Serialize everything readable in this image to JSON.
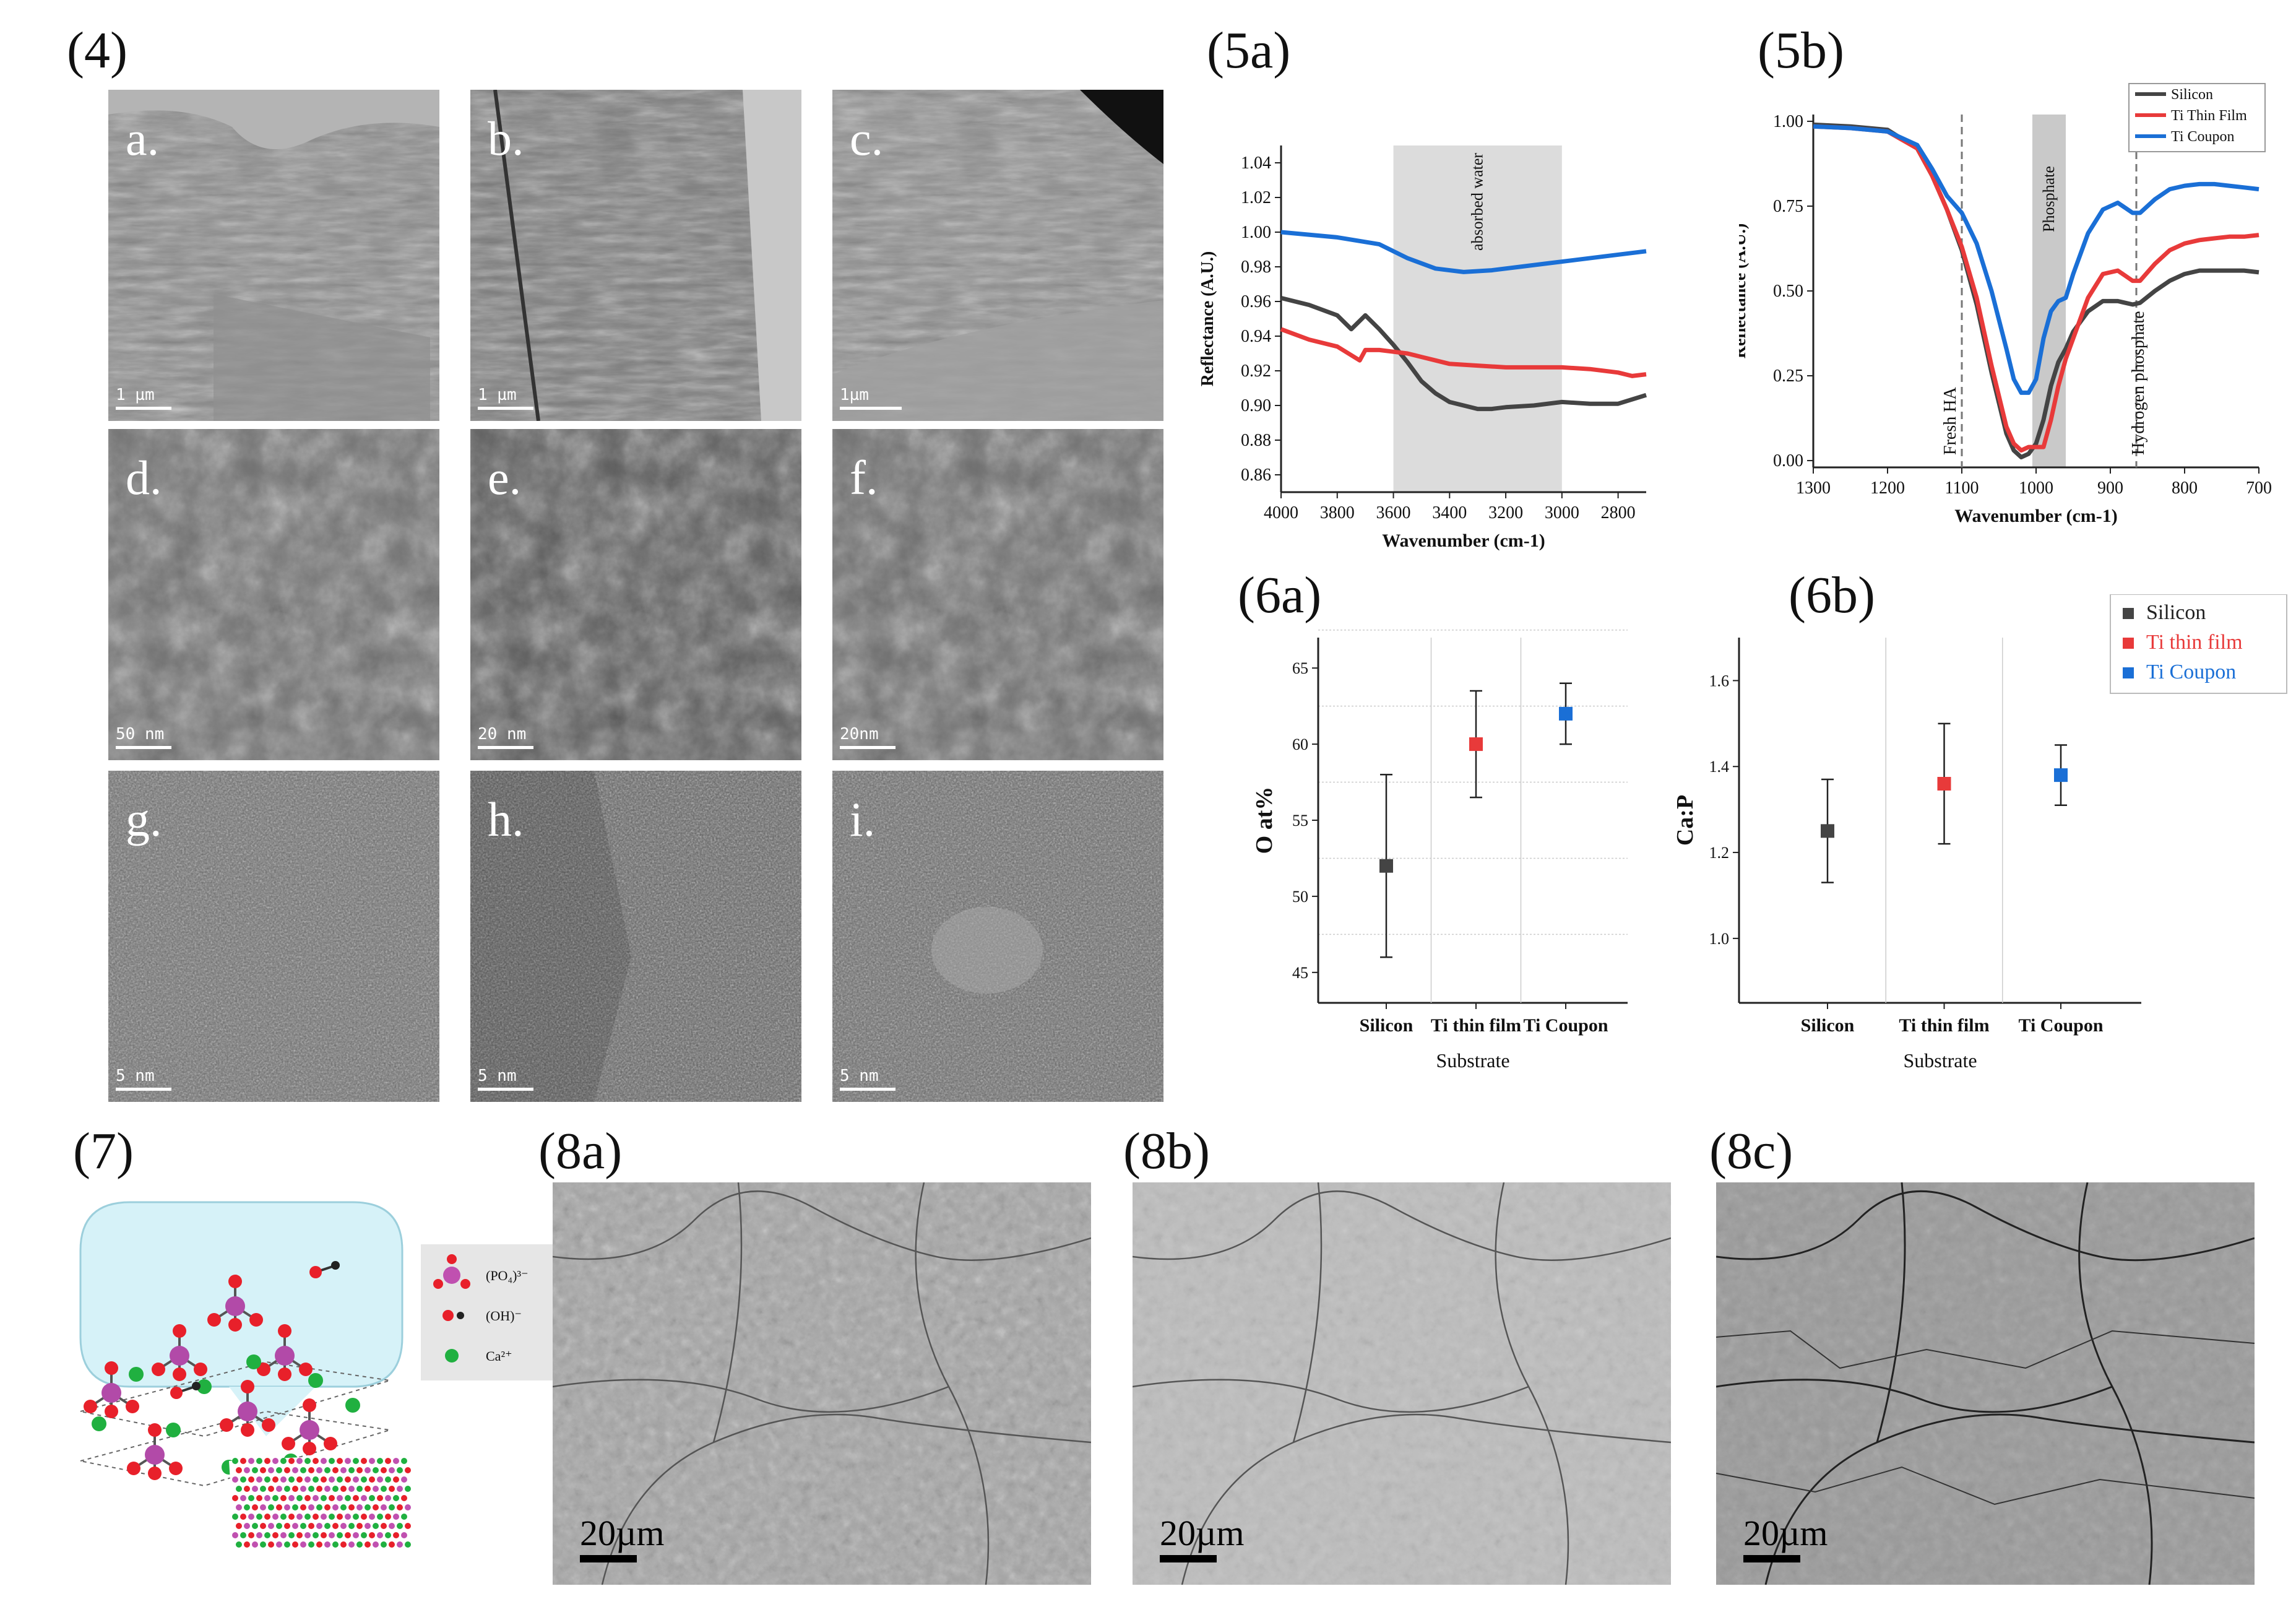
{
  "panels": {
    "p4": "(4)",
    "p5a": "(5a)",
    "p5b": "(5b)",
    "p6a": "(6a)",
    "p6b": "(6b)",
    "p7": "(7)",
    "p8a": "(8a)",
    "p8b": "(8b)",
    "p8c": "(8c)"
  },
  "tem": [
    {
      "label": "a.",
      "scale": "1 µm"
    },
    {
      "label": "b.",
      "scale": "1 µm"
    },
    {
      "label": "c.",
      "scale": "1µm"
    },
    {
      "label": "d.",
      "scale": "50 nm"
    },
    {
      "label": "e.",
      "scale": "20 nm"
    },
    {
      "label": "f.",
      "scale": "20nm"
    },
    {
      "label": "g.",
      "scale": "5 nm"
    },
    {
      "label": "h.",
      "scale": "5 nm"
    },
    {
      "label": "i.",
      "scale": "5 nm"
    }
  ],
  "sem": [
    {
      "scale": "20µm"
    },
    {
      "scale": "20µm"
    },
    {
      "scale": "20µm"
    }
  ],
  "molecule_legend": [
    {
      "label": "(PO₄)³⁻",
      "color": "#c050b0"
    },
    {
      "label": "(OH)⁻",
      "color": "#e8202a"
    },
    {
      "label": "Ca²⁺",
      "color": "#20b040"
    }
  ],
  "chart_data": [
    {
      "id": "5a",
      "type": "line",
      "xlabel": "Wavenumber (cm-1)",
      "ylabel": "Reflectance (A.U.)",
      "xlim": [
        4000,
        2700
      ],
      "ylim": [
        0.85,
        1.05
      ],
      "xticks": [
        4000,
        3800,
        3600,
        3400,
        3200,
        3000,
        2800
      ],
      "yticks": [
        0.86,
        0.88,
        0.9,
        0.92,
        0.94,
        0.96,
        0.98,
        1.0,
        1.02,
        1.04
      ],
      "shaded_region": {
        "x": [
          3600,
          3000
        ],
        "label": "absorbed water"
      },
      "series": [
        {
          "color": "#1a6fd6",
          "x": [
            4000,
            3800,
            3650,
            3550,
            3450,
            3350,
            3250,
            3150,
            3050,
            2950,
            2850,
            2700
          ],
          "y": [
            1.0,
            0.997,
            0.993,
            0.985,
            0.979,
            0.977,
            0.978,
            0.98,
            0.982,
            0.984,
            0.986,
            0.989
          ]
        },
        {
          "color": "#444444",
          "x": [
            4000,
            3900,
            3800,
            3750,
            3700,
            3650,
            3600,
            3550,
            3500,
            3450,
            3400,
            3350,
            3300,
            3250,
            3200,
            3100,
            3000,
            2900,
            2800,
            2700
          ],
          "y": [
            0.962,
            0.958,
            0.952,
            0.944,
            0.952,
            0.944,
            0.935,
            0.925,
            0.914,
            0.907,
            0.902,
            0.9,
            0.898,
            0.898,
            0.899,
            0.9,
            0.902,
            0.901,
            0.901,
            0.906
          ]
        },
        {
          "color": "#e83a3a",
          "x": [
            4000,
            3900,
            3800,
            3720,
            3700,
            3650,
            3600,
            3550,
            3500,
            3450,
            3400,
            3300,
            3200,
            3100,
            3000,
            2900,
            2800,
            2750,
            2700
          ],
          "y": [
            0.944,
            0.938,
            0.934,
            0.926,
            0.932,
            0.932,
            0.931,
            0.93,
            0.928,
            0.926,
            0.924,
            0.923,
            0.922,
            0.922,
            0.922,
            0.921,
            0.919,
            0.917,
            0.918
          ]
        }
      ]
    },
    {
      "id": "5b",
      "type": "line",
      "xlabel": "Wavenumber (cm-1)",
      "ylabel": "Reflectance (A.U.)",
      "xlim": [
        1300,
        700
      ],
      "ylim": [
        -0.02,
        1.02
      ],
      "xticks": [
        1300,
        1200,
        1100,
        1000,
        900,
        800,
        700
      ],
      "yticks": [
        0.0,
        0.25,
        0.5,
        0.75,
        1.0
      ],
      "shaded_region": {
        "x": [
          1005,
          960
        ],
        "label": "Phosphate"
      },
      "dashed_lines": [
        {
          "x": 1100,
          "label": "Fresh HA"
        },
        {
          "x": 865,
          "label": "Hydrogen phosphate"
        }
      ],
      "series": [
        {
          "name": "Silicon",
          "color": "#444444",
          "x": [
            1300,
            1250,
            1200,
            1160,
            1140,
            1120,
            1100,
            1080,
            1060,
            1040,
            1030,
            1020,
            1010,
            1000,
            990,
            980,
            970,
            960,
            950,
            930,
            910,
            890,
            870,
            860,
            840,
            820,
            800,
            780,
            760,
            740,
            720,
            700
          ],
          "y": [
            0.99,
            0.985,
            0.975,
            0.92,
            0.84,
            0.74,
            0.62,
            0.46,
            0.26,
            0.08,
            0.03,
            0.01,
            0.02,
            0.05,
            0.12,
            0.22,
            0.29,
            0.33,
            0.38,
            0.44,
            0.47,
            0.47,
            0.46,
            0.465,
            0.5,
            0.53,
            0.55,
            0.56,
            0.56,
            0.56,
            0.56,
            0.555
          ]
        },
        {
          "name": "Ti Thin Film",
          "color": "#e83a3a",
          "x": [
            1300,
            1250,
            1200,
            1160,
            1140,
            1120,
            1100,
            1080,
            1060,
            1040,
            1030,
            1020,
            1010,
            1000,
            990,
            980,
            970,
            960,
            950,
            930,
            910,
            890,
            870,
            860,
            840,
            820,
            800,
            780,
            760,
            740,
            720,
            700
          ],
          "y": [
            0.985,
            0.98,
            0.97,
            0.92,
            0.84,
            0.74,
            0.63,
            0.48,
            0.28,
            0.1,
            0.05,
            0.03,
            0.04,
            0.04,
            0.04,
            0.12,
            0.22,
            0.3,
            0.36,
            0.48,
            0.55,
            0.56,
            0.53,
            0.53,
            0.58,
            0.62,
            0.64,
            0.65,
            0.655,
            0.66,
            0.66,
            0.665
          ]
        },
        {
          "name": "Ti Coupon",
          "color": "#1a6fd6",
          "x": [
            1300,
            1250,
            1200,
            1160,
            1140,
            1120,
            1100,
            1080,
            1060,
            1040,
            1030,
            1020,
            1010,
            1000,
            990,
            980,
            970,
            960,
            950,
            930,
            910,
            890,
            870,
            860,
            840,
            820,
            800,
            780,
            760,
            740,
            720,
            700
          ],
          "y": [
            0.985,
            0.98,
            0.97,
            0.93,
            0.86,
            0.78,
            0.73,
            0.64,
            0.5,
            0.33,
            0.24,
            0.2,
            0.2,
            0.24,
            0.36,
            0.44,
            0.47,
            0.48,
            0.55,
            0.67,
            0.74,
            0.76,
            0.73,
            0.73,
            0.77,
            0.8,
            0.81,
            0.815,
            0.815,
            0.81,
            0.805,
            0.8
          ]
        }
      ],
      "legend_position": "top-right"
    },
    {
      "id": "6a",
      "type": "scatter",
      "xlabel": "Substrate",
      "ylabel": "O at%",
      "categories": [
        "Silicon",
        "Ti thin film",
        "Ti Coupon"
      ],
      "ylim": [
        43,
        67
      ],
      "yticks": [
        45,
        50,
        55,
        60,
        65
      ],
      "series": [
        {
          "color": "#444444",
          "value": 52,
          "err_low": 46,
          "err_high": 58
        },
        {
          "color": "#e83a3a",
          "value": 60,
          "err_low": 56.5,
          "err_high": 63.5
        },
        {
          "color": "#1a6fd6",
          "value": 62,
          "err_low": 60,
          "err_high": 64
        }
      ]
    },
    {
      "id": "6b",
      "type": "scatter",
      "xlabel": "Substrate",
      "ylabel": "Ca:P",
      "categories": [
        "Silicon",
        "Ti thin film",
        "Ti Coupon"
      ],
      "ylim": [
        0.85,
        1.7
      ],
      "yticks": [
        1.0,
        1.2,
        1.4,
        1.6
      ],
      "series": [
        {
          "name": "Silicon",
          "color": "#444444",
          "value": 1.25,
          "err_low": 1.13,
          "err_high": 1.37
        },
        {
          "name": "Ti thin film",
          "color": "#e83a3a",
          "value": 1.36,
          "err_low": 1.22,
          "err_high": 1.5
        },
        {
          "name": "Ti Coupon",
          "color": "#1a6fd6",
          "value": 1.38,
          "err_low": 1.31,
          "err_high": 1.45
        }
      ],
      "legend_position": "top-right"
    }
  ]
}
